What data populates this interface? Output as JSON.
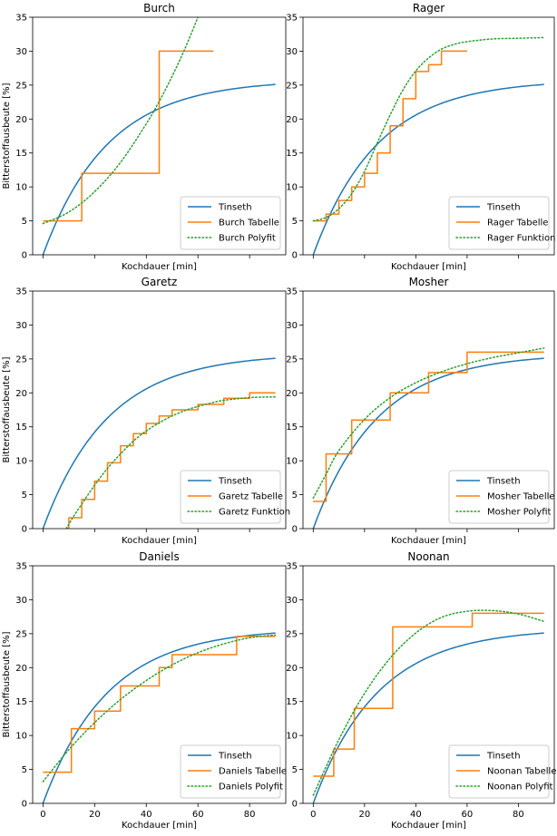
{
  "figure": {
    "xlabel": "Kochdauer [min]",
    "ylabel": "Bitterstoffausbeute [%]"
  },
  "chart_data": [
    {
      "type": "line",
      "title": "Burch",
      "xlim": [
        -4,
        94
      ],
      "ylim": [
        0,
        35
      ],
      "xticks": [
        0,
        20,
        40,
        60,
        80
      ],
      "yticks": [
        0,
        5,
        10,
        15,
        20,
        25,
        30,
        35
      ],
      "show_xtick_labels": false,
      "show_ylabel": true,
      "legend_position": "lower-right",
      "series": [
        {
          "name": "Tinseth",
          "kind": "tinseth",
          "color": "#1f77b4",
          "style": "solid"
        },
        {
          "name": "Burch Tabelle",
          "kind": "step",
          "color": "#ff7f0e",
          "style": "solid",
          "points": [
            [
              0,
              5
            ],
            [
              5,
              5
            ],
            [
              10,
              5
            ],
            [
              15,
              12
            ],
            [
              20,
              12
            ],
            [
              30,
              12
            ],
            [
              40,
              12
            ],
            [
              45,
              30
            ],
            [
              50,
              30
            ],
            [
              55,
              30
            ],
            [
              60,
              30
            ],
            [
              66,
              30
            ]
          ]
        },
        {
          "name": "Burch Polyfit",
          "kind": "curve",
          "color": "#2ca02c",
          "style": "dotted",
          "points": [
            [
              0,
              4.6
            ],
            [
              10,
              6.3
            ],
            [
              20,
              9.3
            ],
            [
              30,
              13.6
            ],
            [
              40,
              19.3
            ],
            [
              45,
              22.6
            ],
            [
              50,
              26.3
            ],
            [
              55,
              30.4
            ],
            [
              60,
              35
            ]
          ]
        }
      ]
    },
    {
      "type": "line",
      "title": "Rager",
      "xlim": [
        -4,
        94
      ],
      "ylim": [
        0,
        35
      ],
      "xticks": [
        0,
        20,
        40,
        60,
        80
      ],
      "yticks": [
        0,
        5,
        10,
        15,
        20,
        25,
        30,
        35
      ],
      "show_xtick_labels": false,
      "show_ylabel": false,
      "legend_position": "lower-right",
      "series": [
        {
          "name": "Tinseth",
          "kind": "tinseth",
          "color": "#1f77b4",
          "style": "solid"
        },
        {
          "name": "Rager Tabelle",
          "kind": "step",
          "color": "#ff7f0e",
          "style": "solid",
          "points": [
            [
              0,
              5
            ],
            [
              5,
              6
            ],
            [
              10,
              8
            ],
            [
              15,
              10
            ],
            [
              20,
              12
            ],
            [
              25,
              15
            ],
            [
              30,
              19
            ],
            [
              35,
              23
            ],
            [
              40,
              27
            ],
            [
              45,
              28
            ],
            [
              50,
              30
            ],
            [
              60,
              30
            ]
          ]
        },
        {
          "name": "Rager Funktion",
          "kind": "curve",
          "color": "#2ca02c",
          "style": "dotted",
          "points": [
            [
              0,
              5
            ],
            [
              5,
              5.5
            ],
            [
              10,
              6.8
            ],
            [
              15,
              9
            ],
            [
              20,
              12.3
            ],
            [
              25,
              16.5
            ],
            [
              30,
              20.6
            ],
            [
              35,
              24.3
            ],
            [
              40,
              27.1
            ],
            [
              45,
              29
            ],
            [
              50,
              30.3
            ],
            [
              55,
              31
            ],
            [
              60,
              31.4
            ],
            [
              70,
              31.8
            ],
            [
              80,
              31.9
            ],
            [
              90,
              32
            ]
          ]
        }
      ]
    },
    {
      "type": "line",
      "title": "Garetz",
      "xlim": [
        -4,
        94
      ],
      "ylim": [
        0,
        35
      ],
      "xticks": [
        0,
        20,
        40,
        60,
        80
      ],
      "yticks": [
        0,
        5,
        10,
        15,
        20,
        25,
        30,
        35
      ],
      "show_xtick_labels": false,
      "show_ylabel": true,
      "legend_position": "lower-right",
      "series": [
        {
          "name": "Tinseth",
          "kind": "tinseth",
          "color": "#1f77b4",
          "style": "solid"
        },
        {
          "name": "Garetz Tabelle",
          "kind": "step",
          "color": "#ff7f0e",
          "style": "solid",
          "points": [
            [
              9,
              0
            ],
            [
              10,
              1.6
            ],
            [
              15,
              4.3
            ],
            [
              20,
              7
            ],
            [
              25,
              9.7
            ],
            [
              30,
              12.2
            ],
            [
              35,
              14
            ],
            [
              40,
              15.5
            ],
            [
              45,
              16.6
            ],
            [
              50,
              17.5
            ],
            [
              60,
              18.3
            ],
            [
              70,
              19.2
            ],
            [
              80,
              20
            ],
            [
              90,
              20
            ]
          ]
        },
        {
          "name": "Garetz Funktion",
          "kind": "curve",
          "color": "#2ca02c",
          "style": "dotted",
          "points": [
            [
              9,
              0
            ],
            [
              12,
              1.9
            ],
            [
              15,
              3.6
            ],
            [
              20,
              6.4
            ],
            [
              25,
              8.9
            ],
            [
              30,
              11
            ],
            [
              35,
              12.9
            ],
            [
              40,
              14.4
            ],
            [
              45,
              15.6
            ],
            [
              50,
              16.6
            ],
            [
              55,
              17.4
            ],
            [
              60,
              18
            ],
            [
              65,
              18.5
            ],
            [
              70,
              18.9
            ],
            [
              80,
              19.3
            ],
            [
              90,
              19.4
            ]
          ]
        }
      ]
    },
    {
      "type": "line",
      "title": "Mosher",
      "xlim": [
        -4,
        94
      ],
      "ylim": [
        0,
        35
      ],
      "xticks": [
        0,
        20,
        40,
        60,
        80
      ],
      "yticks": [
        0,
        5,
        10,
        15,
        20,
        25,
        30,
        35
      ],
      "show_xtick_labels": false,
      "show_ylabel": false,
      "legend_position": "lower-right",
      "series": [
        {
          "name": "Tinseth",
          "kind": "tinseth",
          "color": "#1f77b4",
          "style": "solid"
        },
        {
          "name": "Mosher Tabelle",
          "kind": "step",
          "color": "#ff7f0e",
          "style": "solid",
          "points": [
            [
              0,
              4
            ],
            [
              5,
              11
            ],
            [
              10,
              11
            ],
            [
              15,
              16
            ],
            [
              20,
              16
            ],
            [
              30,
              20
            ],
            [
              40,
              20
            ],
            [
              45,
              23
            ],
            [
              50,
              23
            ],
            [
              60,
              26
            ],
            [
              90,
              26
            ]
          ]
        },
        {
          "name": "Mosher Polyfit",
          "kind": "curve",
          "color": "#2ca02c",
          "style": "dotted",
          "points": [
            [
              0,
              4.5
            ],
            [
              5,
              8
            ],
            [
              10,
              11.5
            ],
            [
              20,
              16.1
            ],
            [
              30,
              19.3
            ],
            [
              40,
              21.5
            ],
            [
              50,
              23.1
            ],
            [
              60,
              24.3
            ],
            [
              70,
              25.2
            ],
            [
              80,
              25.9
            ],
            [
              90,
              26.6
            ]
          ]
        }
      ]
    },
    {
      "type": "line",
      "title": "Daniels",
      "xlim": [
        -4,
        94
      ],
      "ylim": [
        0,
        35
      ],
      "xticks": [
        0,
        20,
        40,
        60,
        80
      ],
      "yticks": [
        0,
        5,
        10,
        15,
        20,
        25,
        30,
        35
      ],
      "show_xtick_labels": true,
      "show_ylabel": true,
      "legend_position": "lower-right",
      "series": [
        {
          "name": "Tinseth",
          "kind": "tinseth",
          "color": "#1f77b4",
          "style": "solid"
        },
        {
          "name": "Daniels Tabelle",
          "kind": "step",
          "color": "#ff7f0e",
          "style": "solid",
          "points": [
            [
              0,
              4.6
            ],
            [
              4,
              4.6
            ],
            [
              8,
              4.6
            ],
            [
              11,
              11
            ],
            [
              15,
              11
            ],
            [
              18,
              11
            ],
            [
              20,
              13.6
            ],
            [
              25,
              13.6
            ],
            [
              28,
              13.6
            ],
            [
              30,
              17.3
            ],
            [
              40,
              17.3
            ],
            [
              43,
              17.3
            ],
            [
              45,
              20
            ],
            [
              48,
              20
            ],
            [
              50,
              21.9
            ],
            [
              60,
              21.9
            ],
            [
              70,
              21.9
            ],
            [
              73,
              21.9
            ],
            [
              75,
              24.6
            ],
            [
              90,
              24.6
            ]
          ]
        },
        {
          "name": "Daniels Polyfit",
          "kind": "curve",
          "color": "#2ca02c",
          "style": "dotted",
          "points": [
            [
              0,
              3.2
            ],
            [
              10,
              7.9
            ],
            [
              20,
              11.9
            ],
            [
              30,
              15.3
            ],
            [
              40,
              18.1
            ],
            [
              50,
              20.4
            ],
            [
              60,
              22.2
            ],
            [
              70,
              23.5
            ],
            [
              80,
              24.4
            ],
            [
              90,
              24.8
            ]
          ]
        }
      ]
    },
    {
      "type": "line",
      "title": "Noonan",
      "xlim": [
        -4,
        94
      ],
      "ylim": [
        0,
        35
      ],
      "xticks": [
        0,
        20,
        40,
        60,
        80
      ],
      "yticks": [
        0,
        5,
        10,
        15,
        20,
        25,
        30,
        35
      ],
      "show_xtick_labels": true,
      "show_ylabel": false,
      "legend_position": "lower-right",
      "series": [
        {
          "name": "Tinseth",
          "kind": "tinseth",
          "color": "#1f77b4",
          "style": "solid"
        },
        {
          "name": "Noonan Tabelle",
          "kind": "step",
          "color": "#ff7f0e",
          "style": "solid",
          "points": [
            [
              0,
              4
            ],
            [
              5,
              4
            ],
            [
              8,
              8
            ],
            [
              15,
              8
            ],
            [
              16,
              14
            ],
            [
              30,
              14
            ],
            [
              31,
              26
            ],
            [
              60,
              26
            ],
            [
              62,
              28
            ],
            [
              90,
              28
            ]
          ]
        },
        {
          "name": "Noonan Polyfit",
          "kind": "curve",
          "color": "#2ca02c",
          "style": "dotted",
          "points": [
            [
              0,
              1.2
            ],
            [
              10,
              9.4
            ],
            [
              20,
              16.2
            ],
            [
              30,
              21.4
            ],
            [
              40,
              25.1
            ],
            [
              50,
              27.4
            ],
            [
              60,
              28.3
            ],
            [
              70,
              28.4
            ],
            [
              80,
              27.9
            ],
            [
              90,
              26.8
            ]
          ]
        }
      ]
    }
  ]
}
